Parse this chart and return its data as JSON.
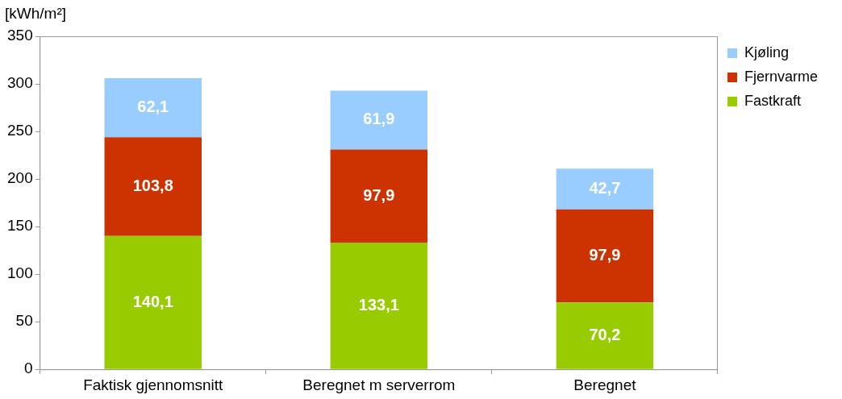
{
  "chart_data": {
    "type": "bar",
    "stacked": true,
    "ylabel": "[kWh/m²]",
    "categories": [
      "Faktisk gjennomsnitt",
      "Beregnet m serverrom",
      "Beregnet"
    ],
    "series": [
      {
        "name": "Fastkraft",
        "color": "#99cc00",
        "values": [
          140.1,
          133.1,
          70.2
        ],
        "value_labels": [
          "140,1",
          "133,1",
          "70,2"
        ]
      },
      {
        "name": "Fjernvarme",
        "color": "#cc3300",
        "values": [
          103.8,
          97.9,
          97.9
        ],
        "value_labels": [
          "103,8",
          "97,9",
          "97,9"
        ]
      },
      {
        "name": "Kjøling",
        "color": "#99ccff",
        "values": [
          62.1,
          61.9,
          42.7
        ],
        "value_labels": [
          "62,1",
          "61,9",
          "42,7"
        ]
      }
    ],
    "ylim": [
      0,
      350
    ],
    "yticks": [
      0,
      50,
      100,
      150,
      200,
      250,
      300,
      350
    ],
    "legend": "top right"
  }
}
